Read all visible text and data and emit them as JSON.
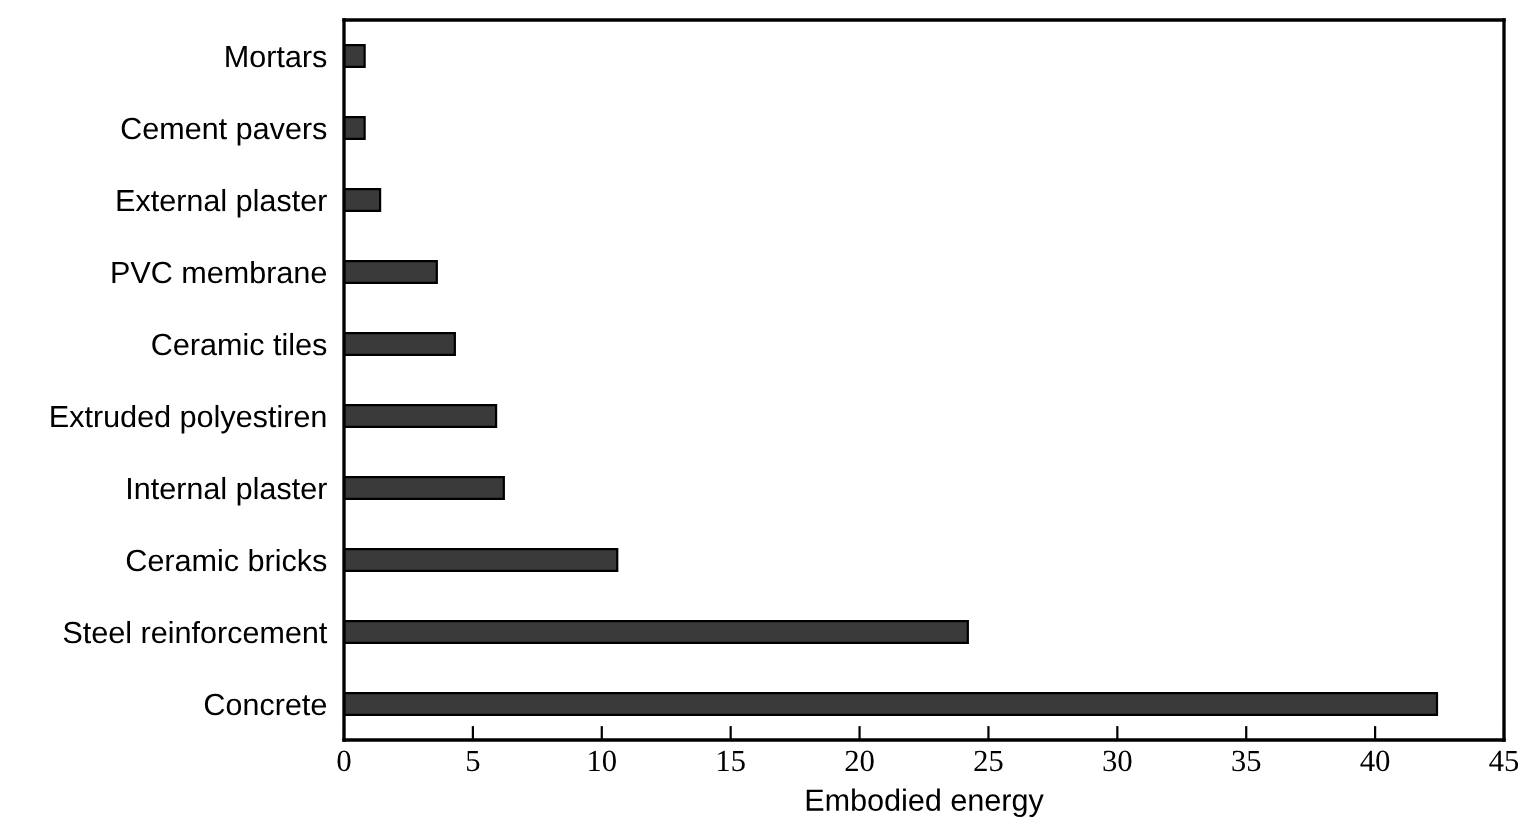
{
  "chart_data": {
    "type": "bar",
    "orientation": "horizontal",
    "xlabel": "Embodied energy",
    "categories": [
      "Mortars",
      "Cement pavers",
      "External plaster",
      "PVC membrane",
      "Ceramic tiles",
      "Extruded polyestiren",
      "Internal plaster",
      "Ceramic bricks",
      "Steel reinforcement",
      "Concrete"
    ],
    "values": [
      0.8,
      0.8,
      1.4,
      3.6,
      4.3,
      5.9,
      6.2,
      10.6,
      24.2,
      42.4
    ],
    "color": "#3a3a3a",
    "xlim": [
      0,
      45
    ],
    "xticks": [
      0,
      5,
      10,
      15,
      20,
      25,
      30,
      35,
      40,
      45
    ],
    "grid": false,
    "legend": false
  }
}
